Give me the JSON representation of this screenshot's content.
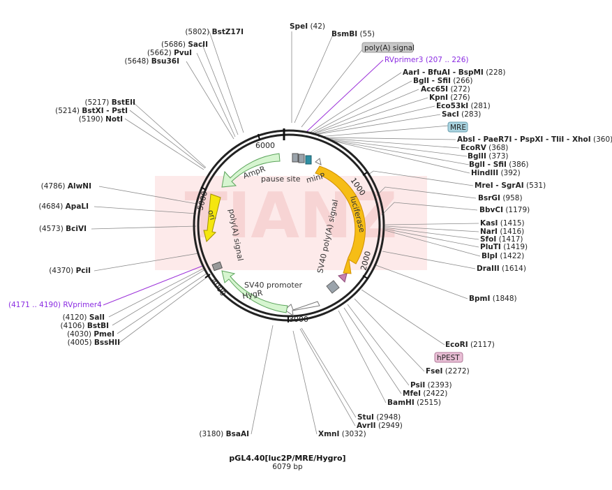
{
  "plasmid": {
    "name": "pGL4.40[luc2P/MRE/Hygro]",
    "length": "6079 bp"
  },
  "watermark": "TIANZ",
  "ticks": [
    "1000",
    "2000",
    "3000",
    "4000",
    "5000",
    "6000"
  ],
  "features": {
    "luciferase": "luciferase",
    "sv40_polya_right": "SV40 poly(A) signal",
    "sv40_promoter": "SV40 promoter",
    "hygr": "HygR",
    "polya_left": "poly(A) signal",
    "ori": "ori",
    "ampr": "AmpR",
    "pause_site": "pause site",
    "minp": "minP"
  },
  "tags": {
    "polya": "poly(A) signal",
    "mre": "MRE",
    "hpest": "hPEST"
  },
  "sites_top": [
    {
      "name": "SpeI",
      "pos": "(42)"
    },
    {
      "name": "BsmBI",
      "pos": "(55)"
    }
  ],
  "primer_top": {
    "name": "RVprimer3",
    "range": "(207 .. 226)"
  },
  "sites_right": [
    {
      "name": "AarI - BfuAI - BspMI",
      "pos": "(228)"
    },
    {
      "name": "BglI - SfiI",
      "pos": "(266)"
    },
    {
      "name": "Acc65I",
      "pos": "(272)"
    },
    {
      "name": "KpnI",
      "pos": "(276)"
    },
    {
      "name": "Eco53kI",
      "pos": "(281)"
    },
    {
      "name": "SacI",
      "pos": "(283)"
    },
    {
      "name": "AbsI - PaeR7I - PspXI - TliI - XhoI",
      "pos": "(360)"
    },
    {
      "name": "EcoRV",
      "pos": "(368)"
    },
    {
      "name": "BglII",
      "pos": "(373)"
    },
    {
      "name": "BglI - SfiI",
      "pos": "(386)"
    },
    {
      "name": "HindIII",
      "pos": "(392)"
    },
    {
      "name": "MreI - SgrAI",
      "pos": "(531)"
    },
    {
      "name": "BsrGI",
      "pos": "(958)"
    },
    {
      "name": "BbvCI",
      "pos": "(1179)"
    },
    {
      "name": "KasI",
      "pos": "(1415)"
    },
    {
      "name": "NarI",
      "pos": "(1416)"
    },
    {
      "name": "SfoI",
      "pos": "(1417)"
    },
    {
      "name": "PluTI",
      "pos": "(1419)"
    },
    {
      "name": "BlpI",
      "pos": "(1422)"
    },
    {
      "name": "DraIII",
      "pos": "(1614)"
    },
    {
      "name": "BpmI",
      "pos": "(1848)"
    },
    {
      "name": "EcoRI",
      "pos": "(2117)"
    },
    {
      "name": "FseI",
      "pos": "(2272)"
    },
    {
      "name": "PsiI",
      "pos": "(2393)"
    },
    {
      "name": "MfeI",
      "pos": "(2422)"
    },
    {
      "name": "BamHI",
      "pos": "(2515)"
    },
    {
      "name": "StuI",
      "pos": "(2948)"
    },
    {
      "name": "AvrII",
      "pos": "(2949)"
    },
    {
      "name": "XmnI",
      "pos": "(3032)"
    }
  ],
  "sites_left": [
    {
      "name": "BstZ17I",
      "pos": "(5802)"
    },
    {
      "name": "SacII",
      "pos": "(5686)"
    },
    {
      "name": "PvuI",
      "pos": "(5662)"
    },
    {
      "name": "Bsu36I",
      "pos": "(5648)"
    },
    {
      "name": "BstEII",
      "pos": "(5217)"
    },
    {
      "name": "BstXI - PstI",
      "pos": "(5214)"
    },
    {
      "name": "NotI",
      "pos": "(5190)"
    },
    {
      "name": "AlwNI",
      "pos": "(4786)"
    },
    {
      "name": "ApaLI",
      "pos": "(4684)"
    },
    {
      "name": "BciVI",
      "pos": "(4573)"
    },
    {
      "name": "PciI",
      "pos": "(4370)"
    },
    {
      "name": "SalI",
      "pos": "(4120)"
    },
    {
      "name": "BstBI",
      "pos": "(4106)"
    },
    {
      "name": "PmeI",
      "pos": "(4030)"
    },
    {
      "name": "BssHII",
      "pos": "(4005)"
    },
    {
      "name": "BsaAI",
      "pos": "(3180)"
    }
  ],
  "primer_left": {
    "name": "RVprimer4",
    "range": "(4171 .. 4190)"
  }
}
